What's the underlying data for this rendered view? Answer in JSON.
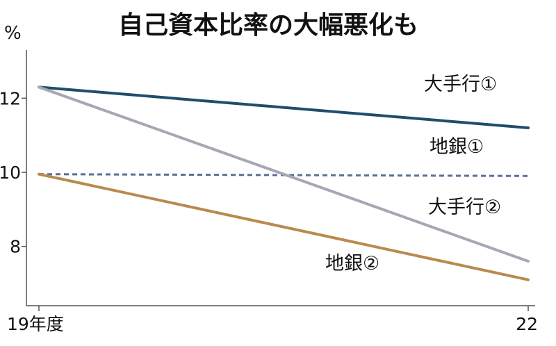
{
  "chart_data": {
    "type": "line",
    "title": "自己資本比率の大幅悪化も",
    "ylabel": "%",
    "categories": [
      "19年度",
      "22"
    ],
    "ylim": [
      6.4,
      13.3
    ],
    "yticks": [
      8,
      10,
      12
    ],
    "grid": false,
    "series": [
      {
        "name": "大手行①",
        "values": [
          12.3,
          11.2
        ],
        "color": "#1f4e6b",
        "style": "solid"
      },
      {
        "name": "地銀①",
        "values": [
          9.95,
          9.9
        ],
        "color": "#5a6f95",
        "style": "dashed"
      },
      {
        "name": "大手行②",
        "values": [
          12.3,
          7.6
        ],
        "color": "#a9a6b4",
        "style": "solid"
      },
      {
        "name": "地銀②",
        "values": [
          9.95,
          7.1
        ],
        "color": "#b98a4e",
        "style": "solid"
      }
    ]
  }
}
